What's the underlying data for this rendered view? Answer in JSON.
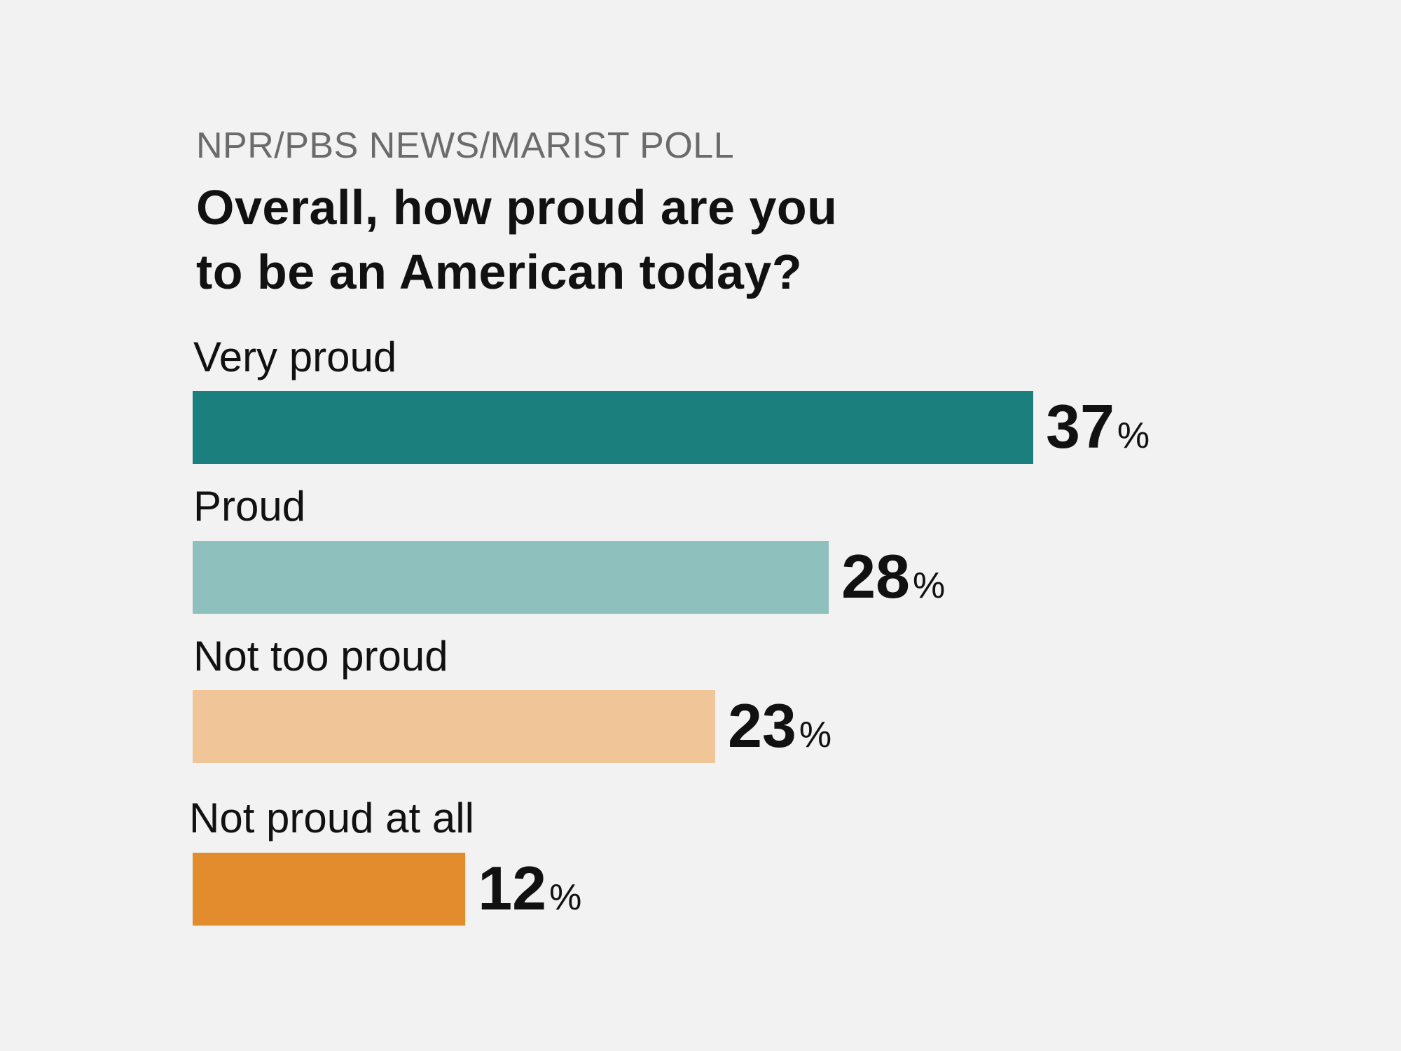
{
  "chart_data": {
    "type": "bar",
    "orientation": "horizontal",
    "kicker": "NPR/PBS NEWS/MARIST POLL",
    "title_lines": [
      "Overall, how proud are you",
      "to be an American today?"
    ],
    "categories": [
      "Very proud",
      "Proud",
      "Not too proud",
      "Not proud at all"
    ],
    "values": [
      37,
      28,
      23,
      12
    ],
    "value_suffix": "%",
    "colors": [
      "#1a7f7d",
      "#8ec0bd",
      "#f0c597",
      "#e38c2d"
    ],
    "xlim": [
      0,
      37
    ],
    "grid": false,
    "legend": "none"
  }
}
